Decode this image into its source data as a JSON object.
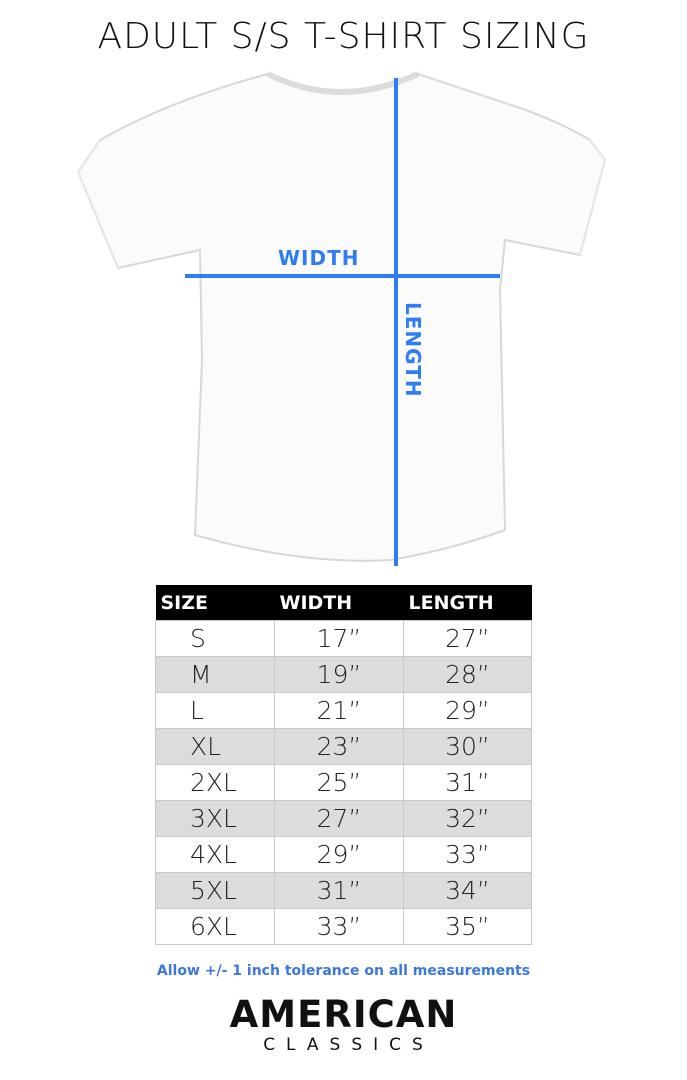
{
  "title": "ADULT S/S T-SHIRT SIZING",
  "diagram": {
    "width_label": "WIDTH",
    "length_label": "LENGTH",
    "line_color": "#2f7df6"
  },
  "table": {
    "headers": [
      "SIZE",
      "WIDTH",
      "LENGTH"
    ],
    "rows": [
      [
        "S",
        "17”",
        "27”"
      ],
      [
        "M",
        "19”",
        "28”"
      ],
      [
        "L",
        "21”",
        "29”"
      ],
      [
        "XL",
        "23”",
        "30”"
      ],
      [
        "2XL",
        "25”",
        "31”"
      ],
      [
        "3XL",
        "27”",
        "32”"
      ],
      [
        "4XL",
        "29”",
        "33”"
      ],
      [
        "5XL",
        "31”",
        "34”"
      ],
      [
        "6XL",
        "33”",
        "35”"
      ]
    ]
  },
  "note": "Allow +/- 1 inch tolerance on all measurements",
  "logo": {
    "line1": "AMERICAN",
    "line2": "CLASSICS"
  }
}
